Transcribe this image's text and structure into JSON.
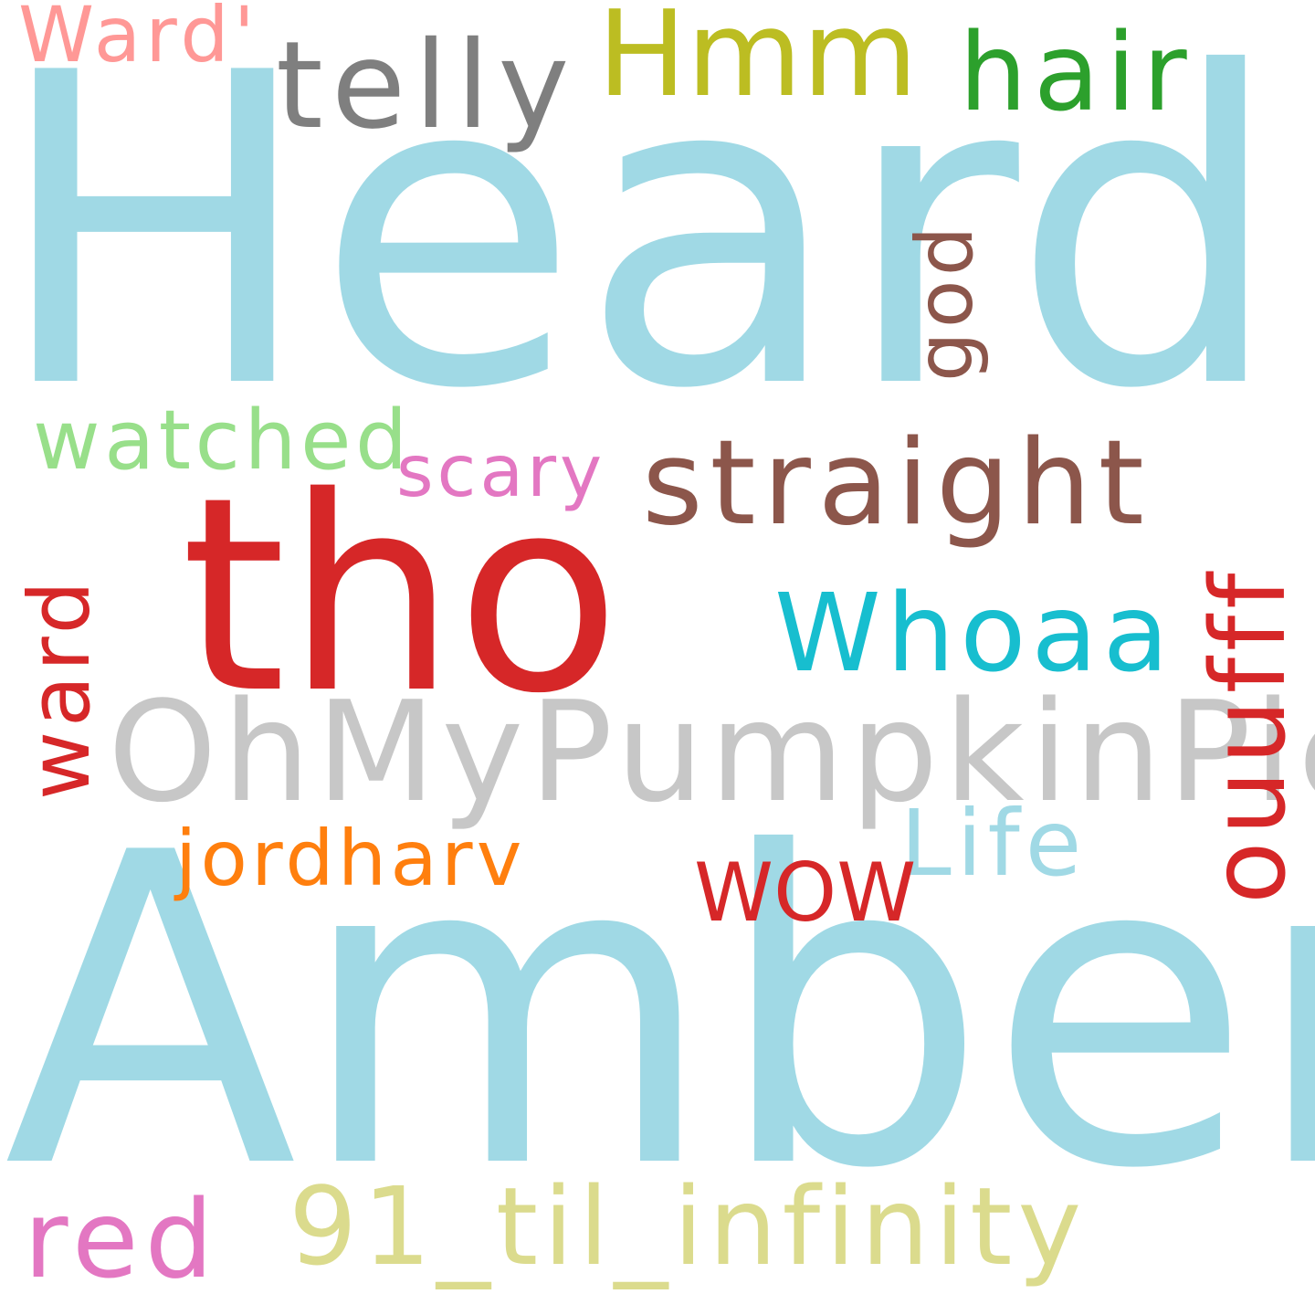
{
  "words": [
    {
      "id": "heard",
      "text": "Heard",
      "color": "#a0d9e5"
    },
    {
      "id": "amber",
      "text": "Amber",
      "color": "#a0d9e5"
    },
    {
      "id": "tho",
      "text": "tho",
      "color": "#d62728"
    },
    {
      "id": "ohmypumpkinpie",
      "text": "OhMyPumpkinPie",
      "color": "#c7c7c7"
    },
    {
      "id": "straight",
      "text": "straight",
      "color": "#8c564b"
    },
    {
      "id": "whoaa",
      "text": "Whoaa",
      "color": "#17becf"
    },
    {
      "id": "ouufff",
      "text": "ouufff",
      "color": "#d62728"
    },
    {
      "id": "telly",
      "text": "telly",
      "color": "#7f7f7f"
    },
    {
      "id": "hmm",
      "text": "Hmm",
      "color": "#bcbd22"
    },
    {
      "id": "hair",
      "text": "hair",
      "color": "#2ca02c"
    },
    {
      "id": "ward-quote",
      "text": "Ward'",
      "color": "#ff9896"
    },
    {
      "id": "god",
      "text": "god",
      "color": "#8c564b"
    },
    {
      "id": "watched",
      "text": "watched",
      "color": "#98df8a"
    },
    {
      "id": "scary",
      "text": "scary",
      "color": "#e377c2"
    },
    {
      "id": "ward",
      "text": "ward",
      "color": "#d62728"
    },
    {
      "id": "life",
      "text": "Life",
      "color": "#a0d9e5"
    },
    {
      "id": "jordharv",
      "text": "jordharv",
      "color": "#ff7f0e"
    },
    {
      "id": "wow",
      "text": "WOW",
      "color": "#d62728"
    },
    {
      "id": "red",
      "text": "red",
      "color": "#e377c2"
    },
    {
      "id": "til-infinity",
      "text": "91_til_infinity",
      "color": "#dbdb8d"
    }
  ]
}
